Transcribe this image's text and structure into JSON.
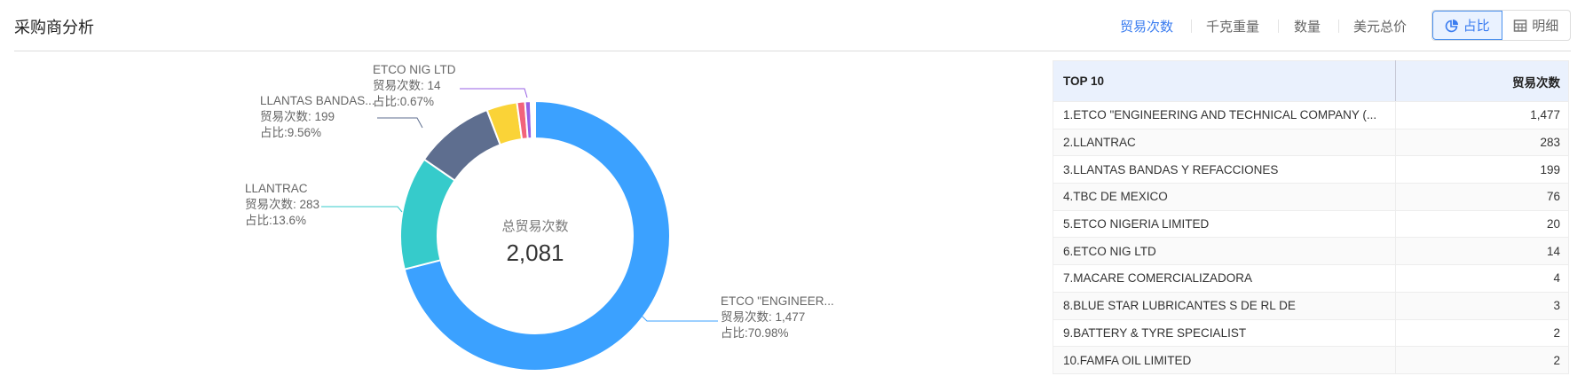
{
  "header": {
    "title": "采购商分析",
    "tabs": [
      {
        "label": "贸易次数",
        "active": true
      },
      {
        "label": "千克重量"
      },
      {
        "label": "数量"
      },
      {
        "label": "美元总价"
      }
    ],
    "view_toggle": [
      {
        "label": "占比",
        "icon": "pie-chart-icon",
        "active": true
      },
      {
        "label": "明细",
        "icon": "table-icon"
      }
    ]
  },
  "chart_data": {
    "type": "pie",
    "donut": true,
    "center_label": "总贸易次数",
    "center_value": "2,081",
    "total": 2081,
    "metric_label": "贸易次数",
    "share_label": "占比",
    "slices": [
      {
        "name": "ETCO \"ENGINEERING AND TECHNICAL COMPANY (...",
        "value": 1477,
        "color": "#3BA1FF"
      },
      {
        "name": "LLANTRAC",
        "value": 283,
        "color": "#36CBCB"
      },
      {
        "name": "LLANTAS BANDAS Y REFACCIONES",
        "value": 199,
        "color": "#5E6E8F"
      },
      {
        "name": "TBC DE MEXICO",
        "value": 76,
        "color": "#FAD337"
      },
      {
        "name": "ETCO NIGERIA LIMITED",
        "value": 20,
        "color": "#F2637B"
      },
      {
        "name": "ETCO NIG LTD",
        "value": 14,
        "color": "#975FE4"
      },
      {
        "name": "MACARE COMERCIALIZADORA",
        "value": 4,
        "color": "#3BA1FF"
      },
      {
        "name": "BLUE STAR LUBRICANTES S DE RL DE",
        "value": 3,
        "color": "#36CBCB"
      },
      {
        "name": "BATTERY & TYRE SPECIALIST",
        "value": 2,
        "color": "#5E6E8F"
      },
      {
        "name": "FAMFA OIL LIMITED",
        "value": 2,
        "color": "#FAD337"
      }
    ],
    "labels": [
      {
        "name": "ETCO \"ENGINEER...",
        "count": "贸易次数: 1,477",
        "pct": "占比:70.98%"
      },
      {
        "name": "LLANTRAC",
        "count": "贸易次数: 283",
        "pct": "占比:13.6%"
      },
      {
        "name": "LLANTAS BANDAS...",
        "count": "贸易次数: 199",
        "pct": "占比:9.56%"
      },
      {
        "name": "ETCO NIG LTD",
        "count": "贸易次数: 14",
        "pct": "占比:0.67%"
      }
    ]
  },
  "table": {
    "headers": [
      "TOP 10",
      "贸易次数"
    ],
    "rows": [
      [
        "1.ETCO \"ENGINEERING AND TECHNICAL COMPANY (...",
        "1,477"
      ],
      [
        "2.LLANTRAC",
        "283"
      ],
      [
        "3.LLANTAS BANDAS Y REFACCIONES",
        "199"
      ],
      [
        "4.TBC DE MEXICO",
        "76"
      ],
      [
        "5.ETCO NIGERIA LIMITED",
        "20"
      ],
      [
        "6.ETCO NIG LTD",
        "14"
      ],
      [
        "7.MACARE COMERCIALIZADORA",
        "4"
      ],
      [
        "8.BLUE STAR LUBRICANTES S DE RL DE",
        "3"
      ],
      [
        "9.BATTERY & TYRE SPECIALIST",
        "2"
      ],
      [
        "10.FAMFA OIL LIMITED",
        "2"
      ]
    ]
  }
}
